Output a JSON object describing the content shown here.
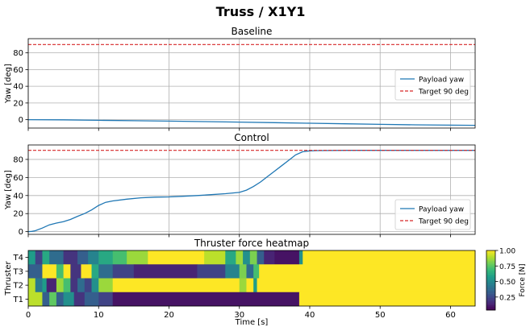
{
  "figure": {
    "title": "Truss / X1Y1"
  },
  "colors": {
    "series": "#1f77b4",
    "target": "#d62728",
    "grid": "#b0b0b0"
  },
  "chart_data": [
    {
      "type": "line",
      "title": "Baseline",
      "xlabel": "",
      "ylabel": "Yaw [deg]",
      "xlim": [
        0,
        63.5
      ],
      "ylim": [
        -10,
        97
      ],
      "xticks": [
        "0",
        "10",
        "20",
        "30",
        "40",
        "50",
        "60"
      ],
      "xtick_values": [
        0,
        10,
        20,
        30,
        40,
        50,
        60
      ],
      "yticks": [
        "0",
        "20",
        "40",
        "60",
        "80"
      ],
      "ytick_values": [
        0,
        20,
        40,
        60,
        80
      ],
      "grid": true,
      "legend": "center-right",
      "series": [
        {
          "name": "Payload yaw",
          "style": "solid",
          "x": [
            0,
            5,
            10,
            15,
            20,
            25,
            30,
            35,
            40,
            45,
            50,
            55,
            60,
            63.5
          ],
          "y": [
            0,
            -0.2,
            -0.7,
            -1.2,
            -1.7,
            -2.3,
            -2.9,
            -3.5,
            -4.2,
            -4.9,
            -5.6,
            -6.1,
            -6.5,
            -6.7
          ]
        },
        {
          "name": "Target 90 deg",
          "style": "dashed",
          "x": [
            0,
            63.5
          ],
          "y": [
            90,
            90
          ]
        }
      ]
    },
    {
      "type": "line",
      "title": "Control",
      "xlabel": "",
      "ylabel": "Yaw [deg]",
      "xlim": [
        0,
        63.5
      ],
      "ylim": [
        -3,
        96
      ],
      "xticks": [
        "0",
        "10",
        "20",
        "30",
        "40",
        "50",
        "60"
      ],
      "xtick_values": [
        0,
        10,
        20,
        30,
        40,
        50,
        60
      ],
      "yticks": [
        "0",
        "20",
        "40",
        "60",
        "80"
      ],
      "ytick_values": [
        0,
        20,
        40,
        60,
        80
      ],
      "grid": true,
      "legend": "lower-right",
      "series": [
        {
          "name": "Payload yaw",
          "style": "solid",
          "x": [
            0,
            0.5,
            1,
            2,
            3,
            4,
            5,
            6,
            7,
            8,
            9,
            10,
            11,
            12,
            14,
            16,
            18,
            20,
            22,
            24,
            26,
            28,
            30,
            31,
            32,
            33,
            34,
            35,
            36,
            37,
            38,
            39,
            40,
            41,
            45,
            50,
            55,
            60,
            63.5
          ],
          "y": [
            0,
            0.3,
            1,
            4,
            7.5,
            9.5,
            11,
            13.5,
            17,
            20,
            24,
            29,
            32.5,
            34,
            36,
            37.5,
            38.2,
            38.5,
            39.2,
            40,
            41,
            42,
            43.5,
            46,
            50,
            55,
            61,
            67,
            73,
            79,
            85,
            88.5,
            89.5,
            89.8,
            90,
            90,
            90,
            90,
            90
          ]
        },
        {
          "name": "Target 90 deg",
          "style": "dashed",
          "x": [
            0,
            63.5
          ],
          "y": [
            90,
            90
          ]
        }
      ]
    },
    {
      "type": "heatmap",
      "title": "Thruster force heatmap",
      "xlabel": "Time [s]",
      "ylabel": "Thruster",
      "xlim": [
        0,
        63.5
      ],
      "rows": [
        "T4",
        "T3",
        "T2",
        "T1"
      ],
      "xticks": [
        "0",
        "10",
        "20",
        "30",
        "40",
        "50",
        "60"
      ],
      "xtick_values": [
        0,
        10,
        20,
        30,
        40,
        50,
        60
      ],
      "colormap": "viridis",
      "colorbar": {
        "label": "Force [N]",
        "range": [
          0.04,
          1.0
        ],
        "ticks": [
          "0.25",
          "0.50",
          "0.75",
          "1.00"
        ],
        "tick_values": [
          0.25,
          0.5,
          0.75,
          1.0
        ]
      },
      "segments": {
        "T4": [
          [
            0,
            1,
            0.55
          ],
          [
            1,
            2,
            0.2
          ],
          [
            2,
            3,
            0.6
          ],
          [
            3,
            5,
            0.35
          ],
          [
            5,
            7,
            0.15
          ],
          [
            7,
            8.5,
            0.3
          ],
          [
            8.5,
            10,
            0.45
          ],
          [
            10,
            12,
            0.6
          ],
          [
            12,
            14,
            0.7
          ],
          [
            14,
            17,
            0.85
          ],
          [
            17,
            25,
            1.0
          ],
          [
            25,
            28,
            0.9
          ],
          [
            28,
            29.5,
            0.6
          ],
          [
            29.5,
            30.5,
            0.85
          ],
          [
            30.5,
            31.5,
            0.5
          ],
          [
            31.5,
            32.5,
            0.8
          ],
          [
            32.5,
            33.5,
            0.3
          ],
          [
            33.5,
            35,
            0.1
          ],
          [
            35,
            38.5,
            0.05
          ],
          [
            38.5,
            39,
            0.5
          ],
          [
            39,
            63.5,
            1.0
          ]
        ],
        "T3": [
          [
            0,
            2,
            0.3
          ],
          [
            2,
            4,
            1.0
          ],
          [
            4,
            5,
            0.7
          ],
          [
            5,
            6,
            1.0
          ],
          [
            6,
            7.5,
            0.15
          ],
          [
            7.5,
            9,
            1.0
          ],
          [
            9,
            10,
            0.6
          ],
          [
            10,
            12,
            0.35
          ],
          [
            12,
            15,
            0.2
          ],
          [
            15,
            24,
            0.1
          ],
          [
            24,
            28,
            0.2
          ],
          [
            28,
            30,
            0.45
          ],
          [
            30,
            31,
            0.8
          ],
          [
            31,
            32,
            0.35
          ],
          [
            32,
            32.8,
            0.7
          ],
          [
            32.8,
            63.5,
            1.0
          ]
        ],
        "T2": [
          [
            0,
            1,
            0.9
          ],
          [
            1,
            2,
            0.4
          ],
          [
            2,
            2.6,
            0.55
          ],
          [
            2.6,
            4,
            0.1
          ],
          [
            4,
            5,
            0.85
          ],
          [
            5,
            6,
            0.7
          ],
          [
            6,
            7,
            0.15
          ],
          [
            7,
            8,
            0.35
          ],
          [
            8,
            9,
            0.2
          ],
          [
            9,
            10,
            0.5
          ],
          [
            10,
            12,
            0.85
          ],
          [
            12,
            30,
            1.0
          ],
          [
            30,
            31,
            0.85
          ],
          [
            31,
            32,
            1.0
          ],
          [
            32,
            32.5,
            0.55
          ],
          [
            32.5,
            63.5,
            1.0
          ]
        ],
        "T1": [
          [
            0,
            2,
            0.9
          ],
          [
            2,
            3,
            0.3
          ],
          [
            3,
            4,
            0.75
          ],
          [
            4,
            5,
            0.3
          ],
          [
            5,
            6.5,
            0.5
          ],
          [
            6.5,
            8,
            0.15
          ],
          [
            8,
            10,
            0.3
          ],
          [
            10,
            12,
            0.2
          ],
          [
            12,
            38.5,
            0.05
          ],
          [
            38.5,
            63.5,
            1.0
          ]
        ]
      }
    }
  ]
}
